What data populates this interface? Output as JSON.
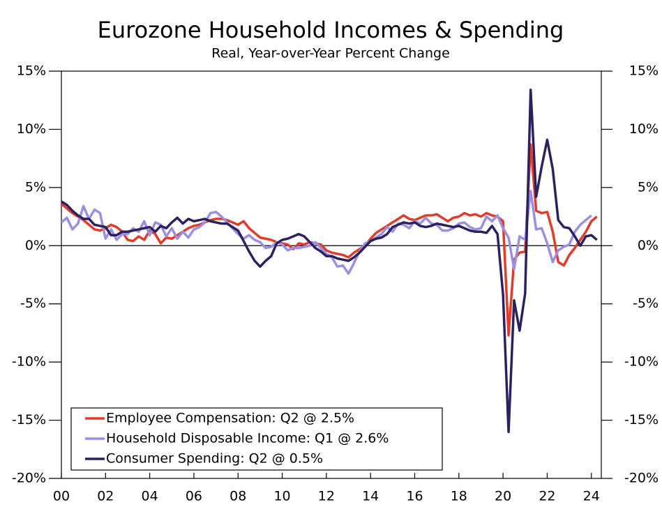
{
  "chart_data": {
    "type": "line",
    "title": "Eurozone Household Incomes & Spending",
    "subtitle": "Real, Year-over-Year Percent Change",
    "x": [
      2000,
      2000.25,
      2000.5,
      2000.75,
      2001,
      2001.25,
      2001.5,
      2001.75,
      2002,
      2002.25,
      2002.5,
      2002.75,
      2003,
      2003.25,
      2003.5,
      2003.75,
      2004,
      2004.25,
      2004.5,
      2004.75,
      2005,
      2005.25,
      2005.5,
      2005.75,
      2006,
      2006.25,
      2006.5,
      2006.75,
      2007,
      2007.25,
      2007.5,
      2007.75,
      2008,
      2008.25,
      2008.5,
      2008.75,
      2009,
      2009.25,
      2009.5,
      2009.75,
      2010,
      2010.25,
      2010.5,
      2010.75,
      2011,
      2011.25,
      2011.5,
      2011.75,
      2012,
      2012.25,
      2012.5,
      2012.75,
      2013,
      2013.25,
      2013.5,
      2013.75,
      2014,
      2014.25,
      2014.5,
      2014.75,
      2015,
      2015.25,
      2015.5,
      2015.75,
      2016,
      2016.25,
      2016.5,
      2016.75,
      2017,
      2017.25,
      2017.5,
      2017.75,
      2018,
      2018.25,
      2018.5,
      2018.75,
      2019,
      2019.25,
      2019.5,
      2019.75,
      2020,
      2020.25,
      2020.5,
      2020.75,
      2021,
      2021.25,
      2021.5,
      2021.75,
      2022,
      2022.25,
      2022.5,
      2022.75,
      2023,
      2023.25,
      2023.5,
      2023.75,
      2024,
      2024.25
    ],
    "series": [
      {
        "name": "Employee Compensation: Q2 @ 2.5%",
        "color": "#e03c2a",
        "values": [
          3.6,
          3.2,
          2.8,
          2.5,
          2.2,
          1.8,
          1.4,
          1.3,
          1.5,
          1.8,
          1.6,
          1.2,
          0.5,
          0.4,
          0.8,
          0.5,
          1.3,
          1.0,
          0.2,
          0.7,
          0.6,
          0.9,
          1.2,
          1.5,
          1.7,
          1.8,
          2.0,
          2.2,
          2.3,
          2.3,
          2.2,
          2.0,
          1.8,
          2.1,
          1.5,
          1.1,
          0.7,
          0.6,
          0.5,
          0.3,
          0.2,
          0.1,
          -0.3,
          0.2,
          0.1,
          0.3,
          0.2,
          0.1,
          -0.4,
          -0.6,
          -0.7,
          -0.8,
          -1.0,
          -0.6,
          -0.3,
          0.0,
          0.6,
          1.1,
          1.4,
          1.7,
          2.0,
          2.3,
          2.6,
          2.3,
          2.2,
          2.4,
          2.6,
          2.6,
          2.7,
          2.4,
          2.1,
          2.4,
          2.5,
          2.8,
          2.6,
          2.7,
          2.5,
          2.8,
          2.6,
          2.5,
          2.1,
          -7.7,
          -1.2,
          -0.6,
          -0.5,
          8.7,
          3.0,
          2.8,
          2.9,
          1.2,
          -1.4,
          -1.7,
          -0.8,
          -0.2,
          0.5,
          1.2,
          2.1,
          2.5
        ]
      },
      {
        "name": "Household Disposable Income: Q1 @ 2.6%",
        "color": "#9b8fe0",
        "values": [
          2.0,
          2.4,
          1.4,
          1.9,
          3.4,
          2.3,
          3.1,
          2.8,
          0.6,
          1.4,
          0.5,
          1.0,
          1.0,
          1.5,
          1.2,
          2.1,
          0.9,
          2.0,
          1.8,
          0.8,
          1.5,
          0.6,
          1.2,
          0.7,
          1.4,
          1.6,
          2.0,
          2.8,
          2.9,
          2.5,
          2.0,
          1.5,
          1.0,
          0.6,
          0.9,
          0.5,
          0.3,
          -0.2,
          -0.1,
          0.3,
          0.1,
          -0.4,
          -0.2,
          -0.2,
          -0.1,
          0.0,
          0.3,
          -0.2,
          -0.7,
          -1.0,
          -1.8,
          -1.7,
          -2.4,
          -1.5,
          -0.5,
          0.2,
          0.4,
          0.7,
          1.0,
          1.6,
          1.2,
          1.9,
          1.8,
          1.5,
          2.1,
          1.9,
          2.4,
          1.9,
          1.8,
          1.3,
          1.3,
          1.5,
          1.9,
          2.0,
          1.6,
          1.4,
          1.5,
          2.5,
          2.1,
          2.6,
          1.5,
          0.7,
          -2.0,
          0.8,
          0.5,
          4.7,
          1.4,
          1.5,
          0.2,
          -1.4,
          -0.4,
          -0.1,
          0.1,
          1.2,
          1.8,
          2.2,
          2.6,
          null
        ]
      },
      {
        "name": "Consumer Spending: Q2 @ 0.5%",
        "color": "#2b2160",
        "values": [
          3.8,
          3.5,
          3.0,
          2.6,
          2.3,
          2.3,
          1.8,
          1.7,
          1.6,
          0.9,
          0.9,
          1.2,
          1.2,
          1.3,
          1.4,
          1.5,
          1.6,
          1.2,
          1.7,
          1.5,
          2.0,
          2.4,
          1.9,
          2.3,
          2.1,
          2.2,
          2.3,
          2.1,
          2.0,
          1.9,
          1.9,
          1.6,
          1.3,
          0.4,
          -0.5,
          -1.3,
          -1.8,
          -1.3,
          -0.9,
          0.2,
          0.5,
          0.6,
          0.8,
          1.0,
          0.8,
          0.3,
          -0.2,
          -0.5,
          -0.9,
          -0.9,
          -1.1,
          -1.2,
          -1.3,
          -1.0,
          -0.6,
          -0.1,
          0.4,
          0.6,
          0.7,
          1.0,
          1.6,
          1.8,
          2.0,
          1.9,
          2.0,
          1.7,
          1.6,
          1.7,
          1.9,
          1.8,
          1.7,
          1.6,
          1.7,
          1.5,
          1.3,
          1.2,
          1.2,
          1.1,
          1.7,
          1.0,
          -4.2,
          -16.0,
          -4.7,
          -7.3,
          -4.1,
          13.4,
          4.2,
          6.8,
          9.1,
          6.6,
          2.2,
          1.6,
          1.5,
          0.8,
          0.0,
          0.8,
          0.9,
          0.5
        ]
      }
    ],
    "xlim": [
      2000,
      2024.45
    ],
    "xticks": [
      {
        "value": 2000,
        "label": "00"
      },
      {
        "value": 2002,
        "label": "02"
      },
      {
        "value": 2004,
        "label": "04"
      },
      {
        "value": 2006,
        "label": "06"
      },
      {
        "value": 2008,
        "label": "08"
      },
      {
        "value": 2010,
        "label": "10"
      },
      {
        "value": 2012,
        "label": "12"
      },
      {
        "value": 2014,
        "label": "14"
      },
      {
        "value": 2016,
        "label": "16"
      },
      {
        "value": 2018,
        "label": "18"
      },
      {
        "value": 2020,
        "label": "20"
      },
      {
        "value": 2022,
        "label": "22"
      },
      {
        "value": 2024,
        "label": "24"
      }
    ],
    "ylim": [
      -20,
      15
    ],
    "yticks": [
      {
        "value": -20,
        "label": "-20%"
      },
      {
        "value": -15,
        "label": "-15%"
      },
      {
        "value": -10,
        "label": "-10%"
      },
      {
        "value": -5,
        "label": "-5%"
      },
      {
        "value": 0,
        "label": "0%"
      },
      {
        "value": 5,
        "label": "5%"
      },
      {
        "value": 10,
        "label": "10%"
      },
      {
        "value": 15,
        "label": "15%"
      }
    ],
    "grid": false,
    "zero_line": true,
    "legend": "lower-left"
  }
}
